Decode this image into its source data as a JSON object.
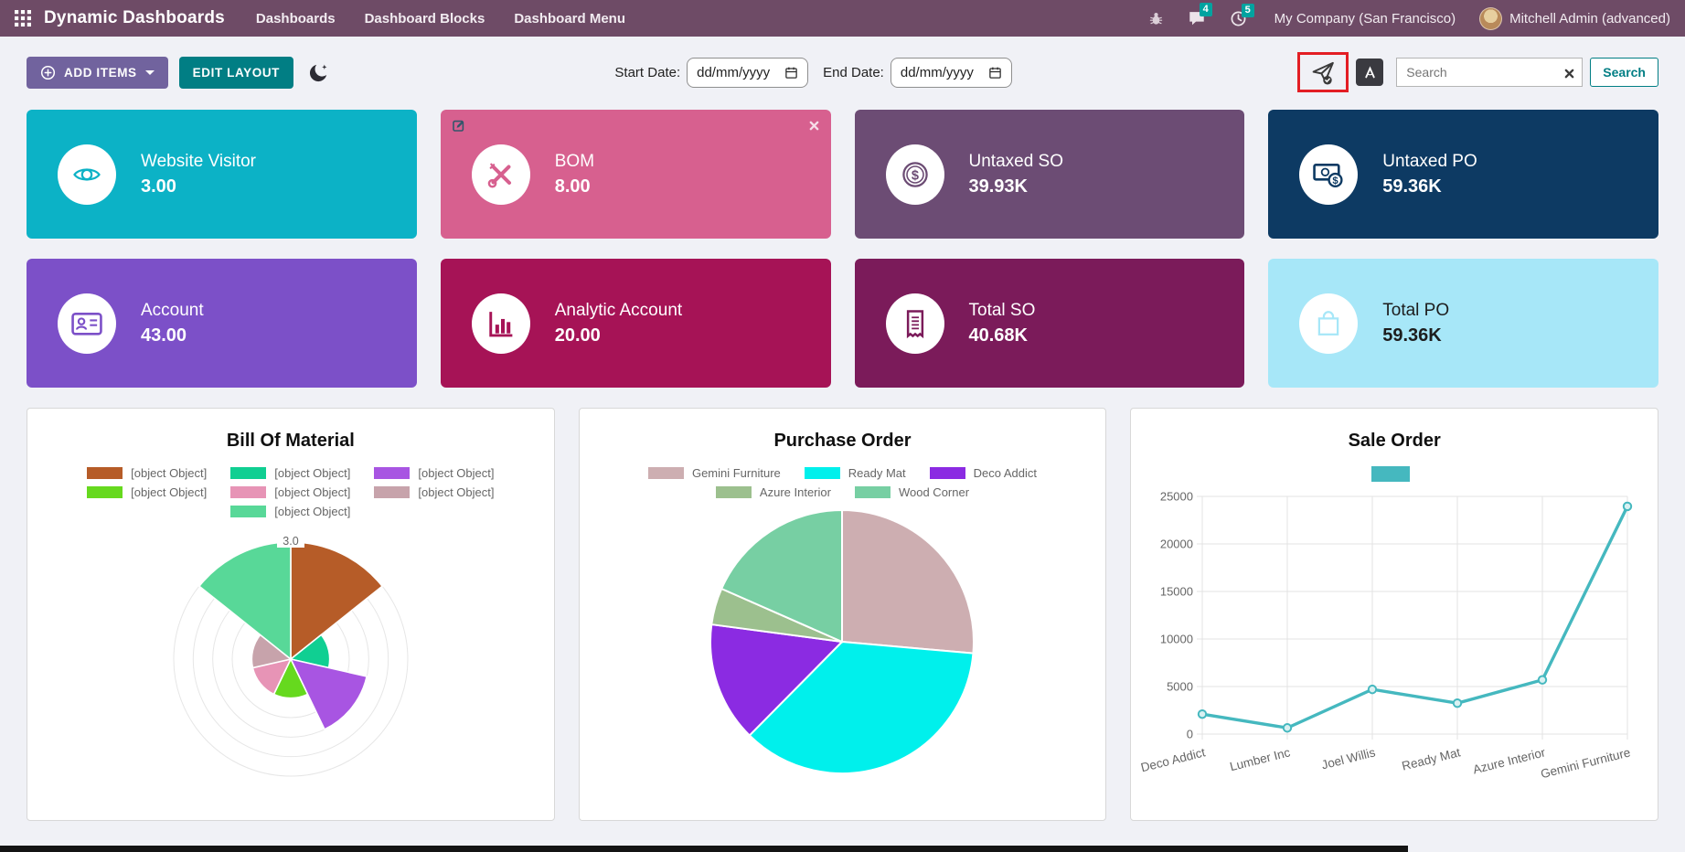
{
  "nav": {
    "app_title": "Dynamic Dashboards",
    "menu_items": [
      "Dashboards",
      "Dashboard Blocks",
      "Dashboard Menu"
    ],
    "message_badge": "4",
    "activity_badge": "5",
    "company": "My Company (San Francisco)",
    "user": "Mitchell Admin (advanced)",
    "colors": {
      "bar": "#6e4b66",
      "badge": "#01a3a0"
    }
  },
  "toolbar": {
    "add_items_label": "ADD ITEMS",
    "edit_layout_label": "EDIT LAYOUT",
    "start_date_label": "Start Date:",
    "end_date_label": "End Date:",
    "date_placeholder": "dd/mm/yyyy",
    "search_placeholder": "Search",
    "search_button_label": "Search",
    "highlight_color": "#e31e24"
  },
  "tiles": [
    {
      "name": "Website Visitor",
      "value": "3.00",
      "bg": "#0cb2c6",
      "text": "#ffffff",
      "icon": "eye"
    },
    {
      "name": "BOM",
      "value": "8.00",
      "bg": "#d7608f",
      "text": "#ffffff",
      "icon": "tools",
      "has_edit": true,
      "has_close": true
    },
    {
      "name": "Untaxed SO",
      "value": "39.93K",
      "bg": "#6c4c74",
      "text": "#ffffff",
      "icon": "coin"
    },
    {
      "name": "Untaxed PO",
      "value": "59.36K",
      "bg": "#0d3a63",
      "text": "#ffffff",
      "icon": "money"
    },
    {
      "name": "Account",
      "value": "43.00",
      "bg": "#7c50c8",
      "text": "#ffffff",
      "icon": "id-card"
    },
    {
      "name": "Analytic Account",
      "value": "20.00",
      "bg": "#a61356",
      "text": "#ffffff",
      "icon": "bar-chart"
    },
    {
      "name": "Total SO",
      "value": "40.68K",
      "bg": "#7b1b5a",
      "text": "#ffffff",
      "icon": "receipt"
    },
    {
      "name": "Total PO",
      "value": "59.36K",
      "bg": "#a7e7f8",
      "text": "#1d1d1d",
      "icon": "shopping-bag"
    }
  ],
  "chart_data": [
    {
      "type": "polarArea",
      "title": "Bill Of Material",
      "legend_label": "[object Object]",
      "values": [
        3,
        1,
        2,
        1,
        1,
        1,
        3
      ],
      "colors": [
        "#b65c28",
        "#10cf92",
        "#a855e2",
        "#66d91e",
        "#e794b6",
        "#c7a3ab",
        "#58d898"
      ],
      "scale_max": 3.0,
      "ring_step": 0.5,
      "tick_label": "3.0",
      "legend_layout": [
        3,
        3,
        1
      ]
    },
    {
      "type": "pie",
      "title": "Purchase Order",
      "labels": [
        "Gemini Furniture",
        "Ready Mat",
        "Deco Addict",
        "Azure Interior",
        "Wood Corner"
      ],
      "values": [
        26.4,
        36.0,
        14.7,
        4.5,
        18.4
      ],
      "unit": "percent",
      "colors": [
        "#cdaeb1",
        "#00f0ec",
        "#8b2be2",
        "#9cc08e",
        "#77cfa3"
      ],
      "legend_layout": [
        3,
        2
      ]
    },
    {
      "type": "line",
      "title": "Sale Order",
      "categories": [
        "Deco Addict",
        "Lumber Inc",
        "Joel Willis",
        "Ready Mat",
        "Azure Interior",
        "Gemini Furniture"
      ],
      "values": [
        2100,
        650,
        4700,
        3250,
        5700,
        23950
      ],
      "yticks": [
        0,
        5000,
        10000,
        15000,
        20000,
        25000
      ],
      "ylim": [
        0,
        25000
      ],
      "color": "#45b8bf",
      "point_fill": "#d9f1f2",
      "legend_label": "",
      "grid": true
    }
  ]
}
